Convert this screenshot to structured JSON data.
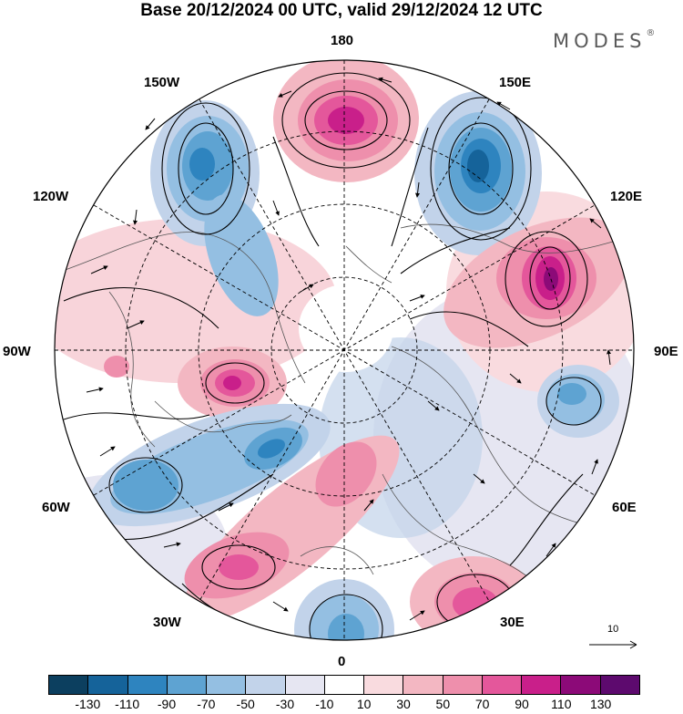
{
  "title": "Base 20/12/2024 00 UTC, valid 29/12/2024 12 UTC",
  "brand": "MODES",
  "brand_mark": "®",
  "longitude_labels": {
    "top": "180",
    "bottom": "0",
    "left": "90W",
    "right": "90E",
    "upper_left_1": "150W",
    "upper_left_2": "120W",
    "upper_right_1": "150E",
    "upper_right_2": "120E",
    "lower_left_1": "60W",
    "lower_left_2": "30W",
    "lower_right_1": "60E",
    "lower_right_2": "30E"
  },
  "reference_vector_label": "10",
  "colorbar": {
    "colors": [
      "#0c3f5f",
      "#15639a",
      "#2e84bf",
      "#5ea3d2",
      "#94bfe2",
      "#c2d3ea",
      "#e6e6f2",
      "#ffffff",
      "#f9dbdf",
      "#f3b7c2",
      "#ee8fac",
      "#e4579b",
      "#c91f8a",
      "#8c0a78",
      "#5d0a6e"
    ],
    "ticks": [
      "-130",
      "-110",
      "-90",
      "-70",
      "-50",
      "-30",
      "-10",
      "10",
      "30",
      "50",
      "70",
      "90",
      "110",
      "130"
    ]
  },
  "anomaly_colors": {
    "strong_positive": "#c91f8a",
    "positive": "#ee8fac",
    "weak_positive": "#f9dbdf",
    "weak_negative": "#c2d3ea",
    "negative": "#5ea3d2",
    "strong_negative": "#15639a"
  }
}
